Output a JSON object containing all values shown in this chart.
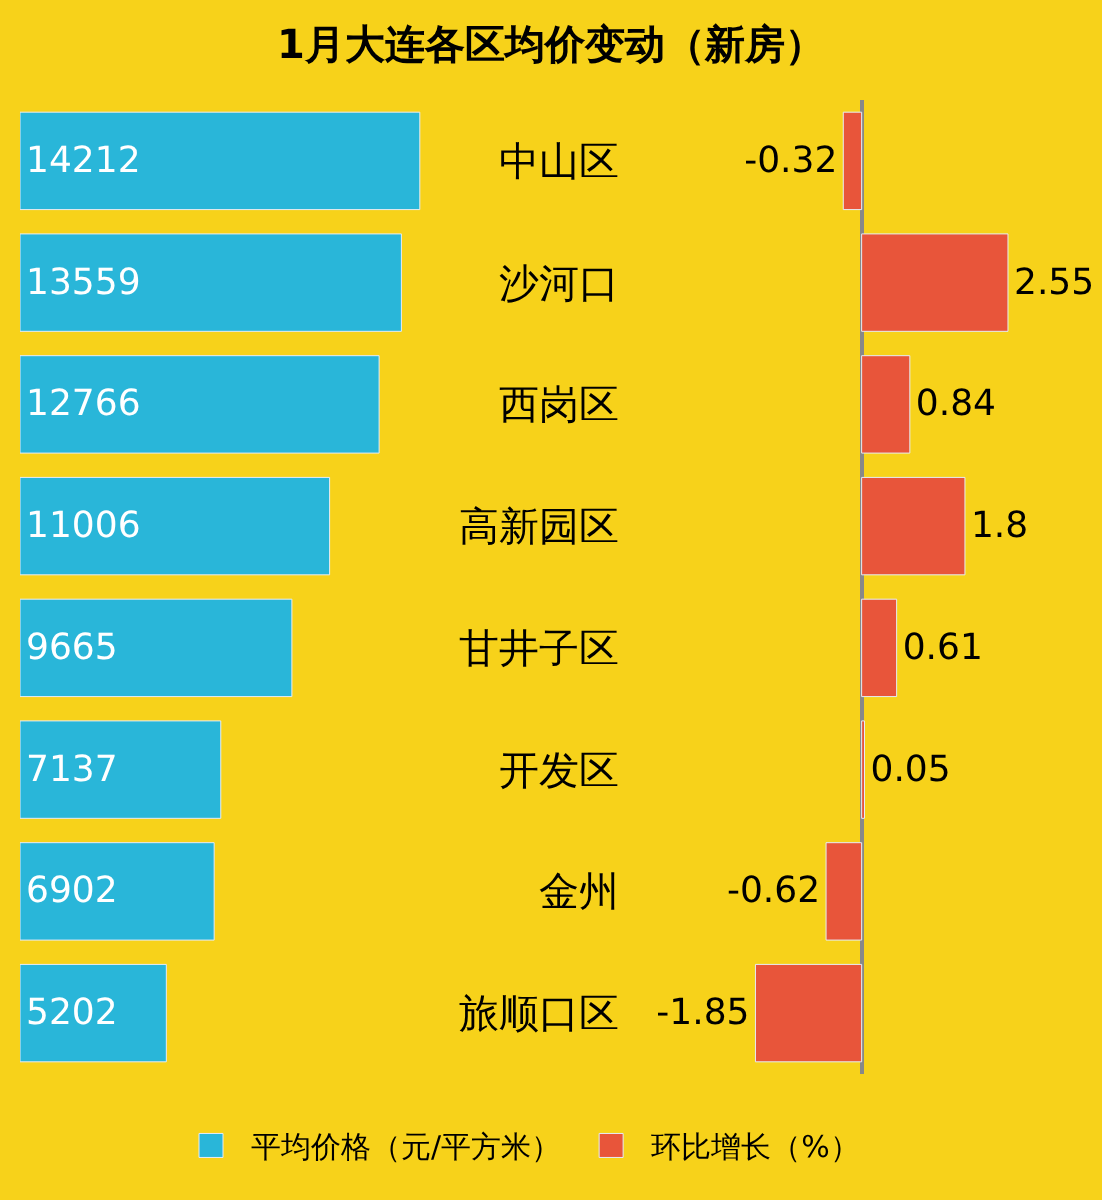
{
  "chart_data": [
    {
      "type": "bar",
      "orientation": "horizontal",
      "title": "1月大连各区均价变动（新房）",
      "categories": [
        "中山区",
        "沙河口",
        "西岗区",
        "高新园区",
        "甘井子区",
        "开发区",
        "金州",
        "旅顺口区"
      ],
      "series": [
        {
          "name": "平均价格（元/平方米）",
          "color": "#29b6d9",
          "values": [
            14212,
            13559,
            12766,
            11006,
            9665,
            7137,
            6902,
            5202
          ]
        }
      ],
      "data_labels": true,
      "legend": "bottom",
      "tick_labels": "y"
    },
    {
      "type": "bar",
      "orientation": "horizontal",
      "categories": [
        "中山区",
        "沙河口",
        "西岗区",
        "高新园区",
        "甘井子区",
        "开发区",
        "金州",
        "旅顺口区"
      ],
      "series": [
        {
          "name": "环比增长（%）",
          "color": "#e8553a",
          "values": [
            -0.32,
            2.55,
            0.84,
            1.8,
            0.61,
            0.05,
            -0.62,
            -1.85
          ]
        }
      ],
      "data_labels": true,
      "legend": "bottom",
      "tick_labels": false
    }
  ]
}
